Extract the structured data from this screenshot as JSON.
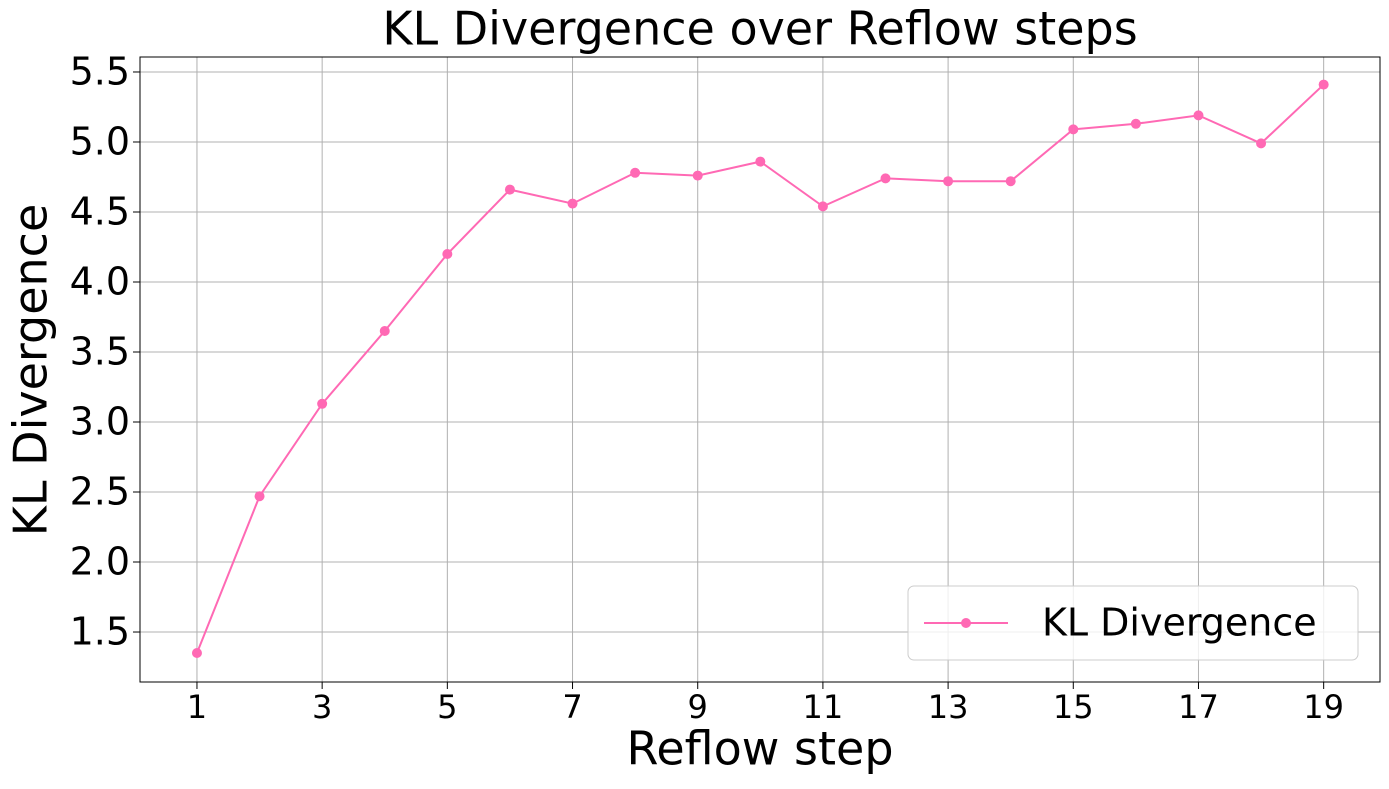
{
  "chart_data": {
    "type": "line",
    "title": "KL Divergence over Reflow steps",
    "x_label": "Reflow step",
    "y_label": "KL Divergence",
    "x": [
      1,
      2,
      3,
      4,
      5,
      6,
      7,
      8,
      9,
      10,
      11,
      12,
      13,
      14,
      15,
      16,
      17,
      18,
      19
    ],
    "series": [
      {
        "name": "KL Divergence",
        "color": "#ff69b4",
        "values": [
          1.35,
          2.47,
          3.13,
          3.65,
          4.2,
          4.66,
          4.56,
          4.78,
          4.76,
          4.86,
          4.54,
          4.74,
          4.72,
          4.72,
          5.09,
          5.13,
          5.19,
          4.99,
          5.41
        ]
      }
    ],
    "xlim": [
      0.09,
      19.9
    ],
    "ylim": [
      1.143,
      5.607
    ],
    "xticks": [
      1,
      3,
      5,
      7,
      9,
      11,
      13,
      15,
      17,
      19
    ],
    "yticks": [
      1.5,
      {
        "value": 2,
        "label": "2.0"
      },
      2.5,
      {
        "value": 3,
        "label": "3.0"
      },
      3.5,
      {
        "value": 4,
        "label": "4.0"
      },
      4.5,
      {
        "value": 5,
        "label": "5.0"
      },
      5.5
    ],
    "grid": true,
    "legend": "lower right"
  }
}
